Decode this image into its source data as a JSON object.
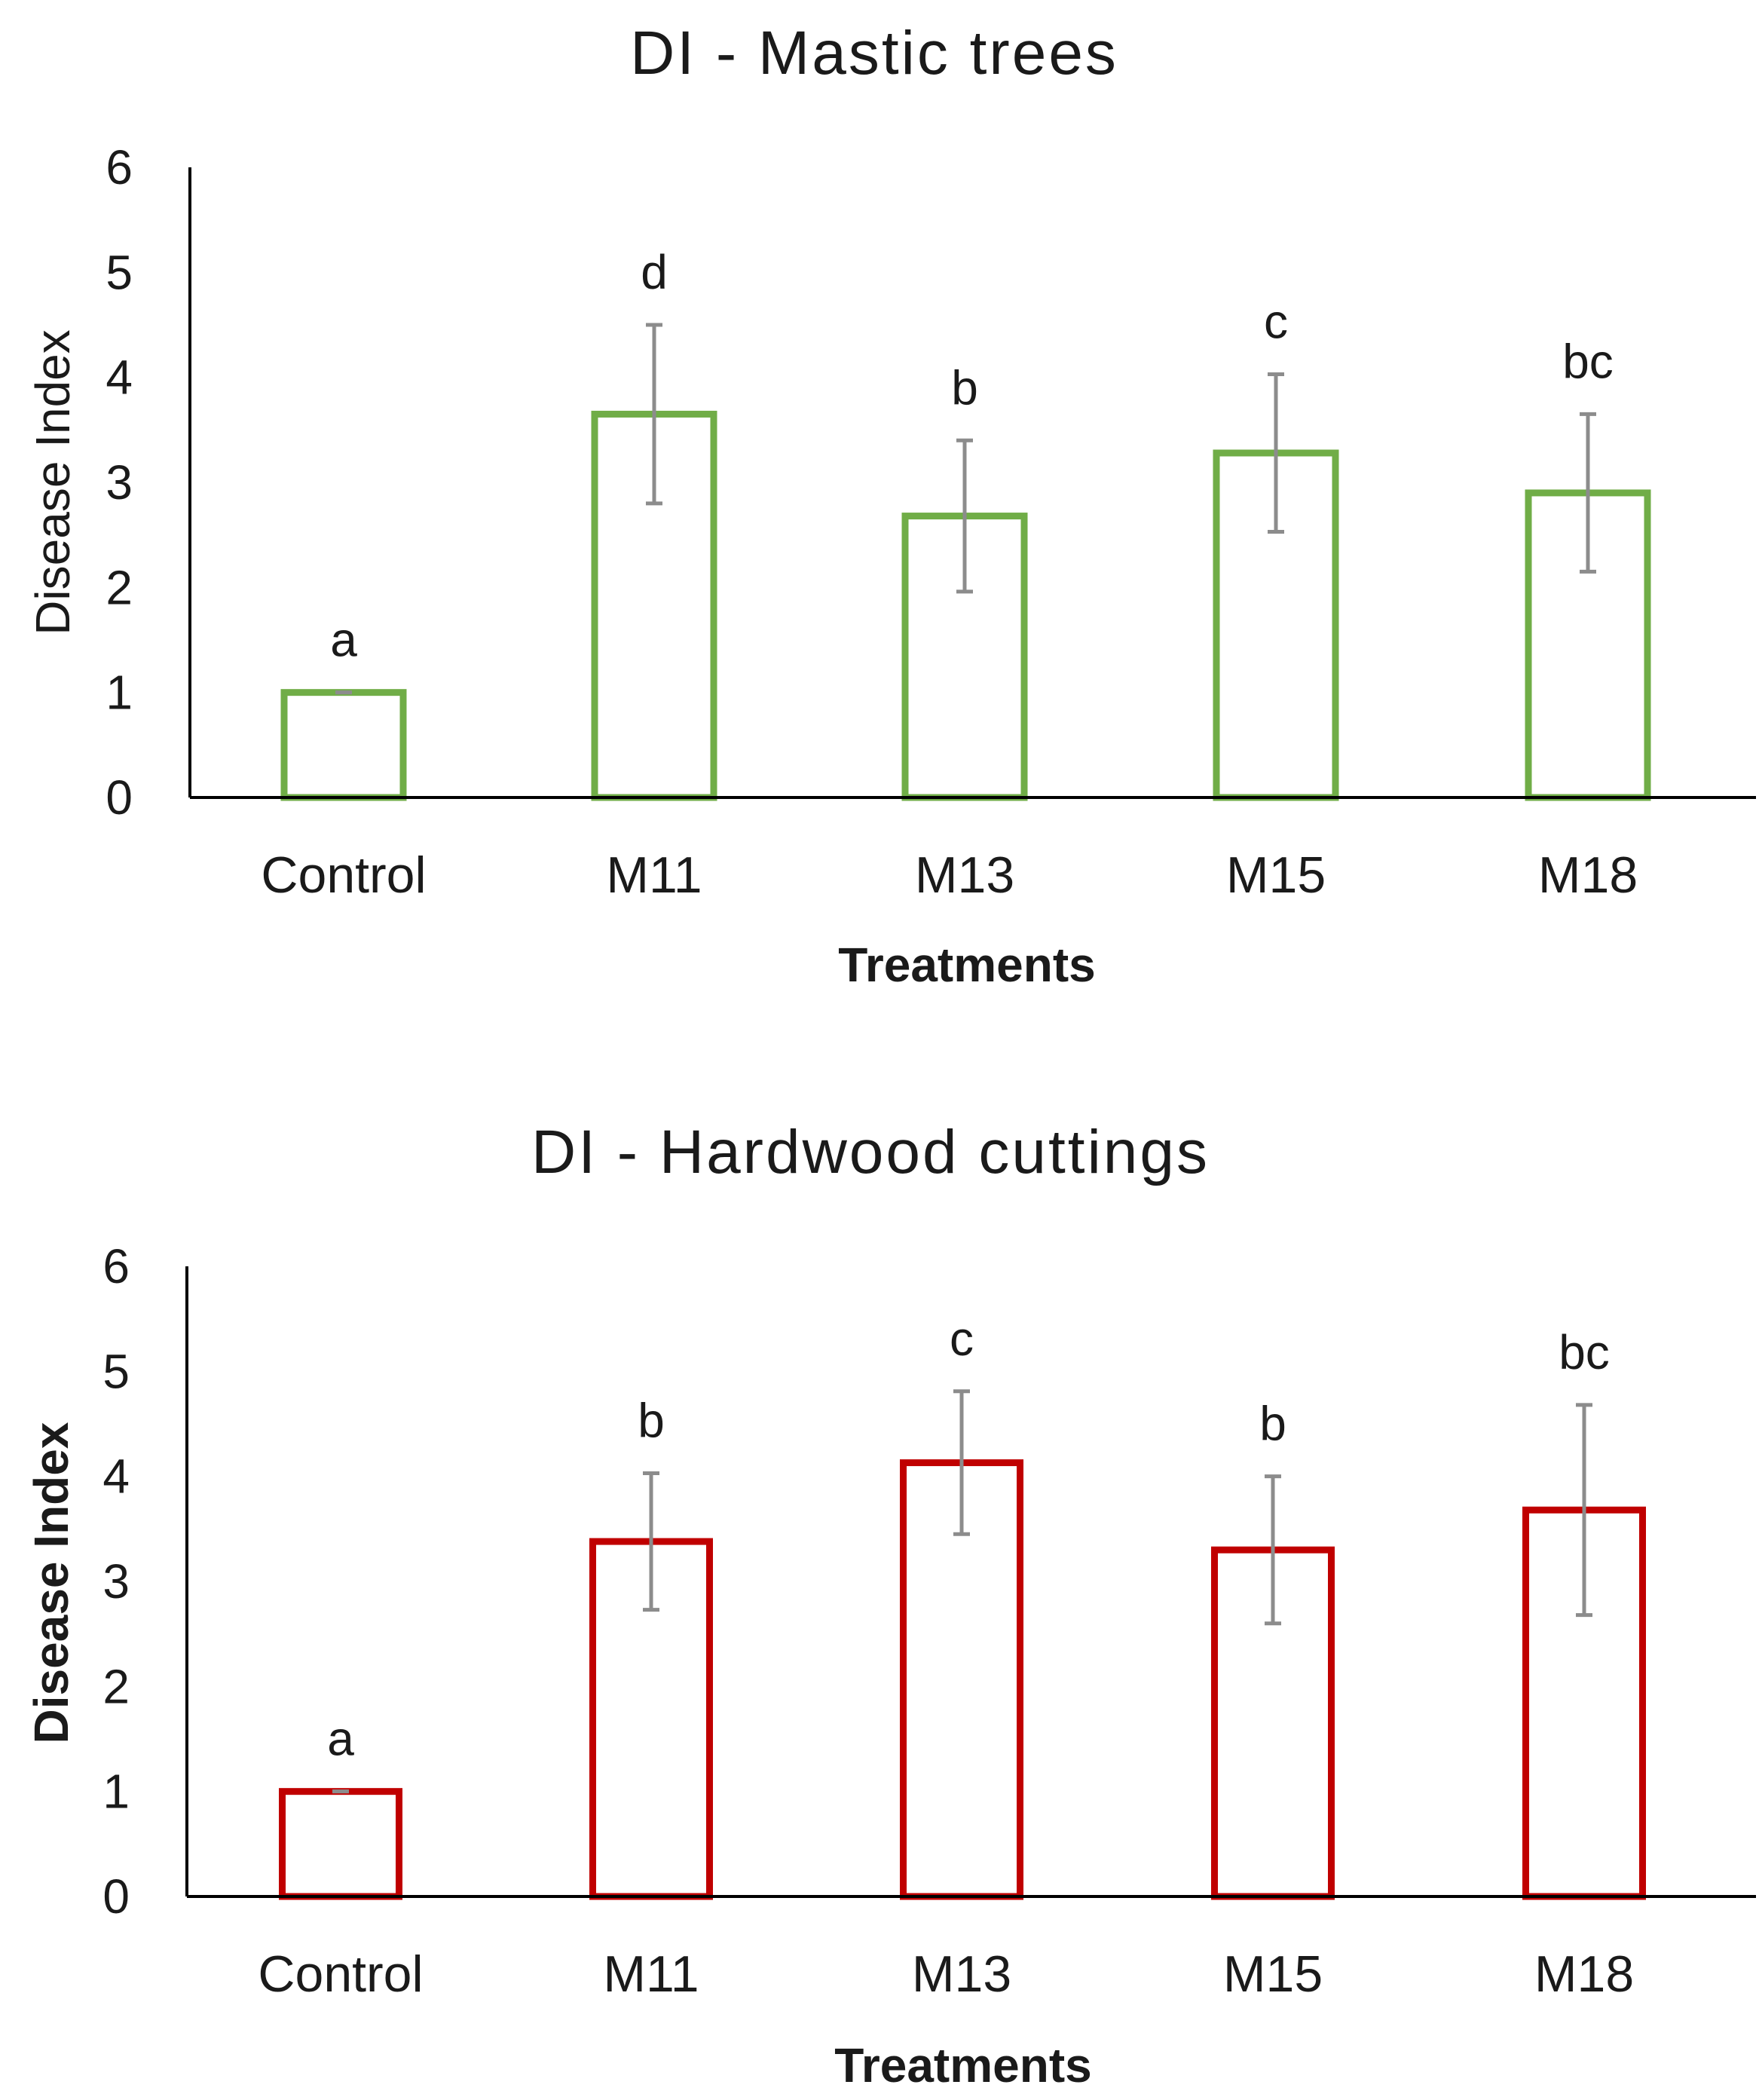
{
  "chart_data": [
    {
      "type": "bar",
      "title": "DI - Mastic trees",
      "xlabel": "Treatments",
      "ylabel": "Disease Index",
      "ylabel_bold": false,
      "ylim": [
        0,
        6
      ],
      "yticks": [
        "0",
        "1",
        "2",
        "3",
        "4",
        "5",
        "6"
      ],
      "color": "#70ad47",
      "categories": [
        "Control",
        "M11",
        "M13",
        "M15",
        "M18"
      ],
      "values": [
        1.0,
        3.65,
        2.68,
        3.28,
        2.9
      ],
      "errors": [
        0.0,
        0.85,
        0.72,
        0.75,
        0.75
      ],
      "significance": [
        "a",
        "d",
        "b",
        "c",
        "bc"
      ],
      "grid": false
    },
    {
      "type": "bar",
      "title": "DI - Hardwood cuttings",
      "xlabel": "Treatments",
      "ylabel": "Disease Index",
      "ylabel_bold": true,
      "ylim": [
        0,
        6
      ],
      "yticks": [
        "0",
        "1",
        "2",
        "3",
        "4",
        "5",
        "6"
      ],
      "color": "#c00000",
      "categories": [
        "Control",
        "M11",
        "M13",
        "M15",
        "M18"
      ],
      "values": [
        1.0,
        3.38,
        4.13,
        3.3,
        3.68
      ],
      "errors": [
        0.0,
        0.65,
        0.68,
        0.7,
        1.0
      ],
      "significance": [
        "a",
        "b",
        "c",
        "b",
        "bc"
      ],
      "grid": false
    }
  ]
}
